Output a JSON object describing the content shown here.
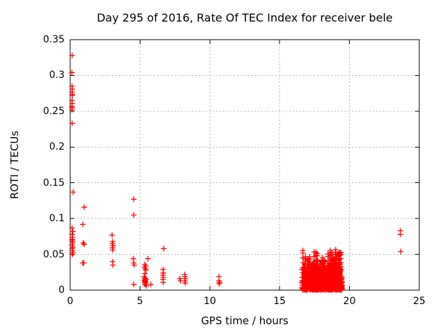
{
  "chart_data": {
    "type": "scatter",
    "title": "Day 295 of 2016, Rate Of TEC Index for receiver bele",
    "xlabel": "GPS time / hours",
    "ylabel": "ROTI / TECUs",
    "xlim": [
      0,
      25
    ],
    "ylim": [
      0,
      0.35
    ],
    "xticks": [
      0,
      5,
      10,
      15,
      20,
      25
    ],
    "yticks": [
      0,
      0.05,
      0.1,
      0.15,
      0.2,
      0.25,
      0.3,
      0.35
    ],
    "grid": "dashed",
    "legend": "none",
    "marker": "plus",
    "marker_color": "#ff0000",
    "grid_color": "#b3b3b3",
    "axis_color": "#000000",
    "series": [
      {
        "name": "ROTI",
        "points": [
          [
            0.14,
            0.328
          ],
          [
            0.12,
            0.304
          ],
          [
            0.13,
            0.285
          ],
          [
            0.15,
            0.281
          ],
          [
            0.13,
            0.277
          ],
          [
            0.14,
            0.274
          ],
          [
            0.15,
            0.272
          ],
          [
            0.13,
            0.265
          ],
          [
            0.14,
            0.261
          ],
          [
            0.12,
            0.257
          ],
          [
            0.14,
            0.255
          ],
          [
            0.13,
            0.252
          ],
          [
            0.14,
            0.233
          ],
          [
            0.21,
            0.137
          ],
          [
            0.13,
            0.087
          ],
          [
            0.19,
            0.082
          ],
          [
            0.14,
            0.078
          ],
          [
            0.17,
            0.074
          ],
          [
            0.13,
            0.071
          ],
          [
            0.15,
            0.07
          ],
          [
            0.14,
            0.068
          ],
          [
            0.17,
            0.066
          ],
          [
            0.13,
            0.063
          ],
          [
            0.18,
            0.06
          ],
          [
            0.14,
            0.058
          ],
          [
            0.16,
            0.055
          ],
          [
            0.13,
            0.052
          ],
          [
            0.21,
            0.052
          ],
          [
            0.15,
            0.05
          ],
          [
            1.0,
            0.116
          ],
          [
            0.9,
            0.092
          ],
          [
            0.93,
            0.066
          ],
          [
            1.0,
            0.064
          ],
          [
            0.89,
            0.038
          ],
          [
            0.97,
            0.038
          ],
          [
            3.0,
            0.077
          ],
          [
            3.05,
            0.068
          ],
          [
            3.02,
            0.065
          ],
          [
            3.07,
            0.062
          ],
          [
            3.03,
            0.059
          ],
          [
            3.05,
            0.056
          ],
          [
            3.04,
            0.04
          ],
          [
            3.06,
            0.035
          ],
          [
            4.55,
            0.127
          ],
          [
            4.55,
            0.105
          ],
          [
            4.52,
            0.044
          ],
          [
            4.55,
            0.038
          ],
          [
            4.58,
            0.035
          ],
          [
            4.55,
            0.008
          ],
          [
            5.57,
            0.044
          ],
          [
            5.35,
            0.036
          ],
          [
            5.4,
            0.034
          ],
          [
            5.33,
            0.032
          ],
          [
            5.38,
            0.03
          ],
          [
            5.42,
            0.028
          ],
          [
            5.36,
            0.023
          ],
          [
            5.3,
            0.019
          ],
          [
            5.34,
            0.017
          ],
          [
            5.38,
            0.016
          ],
          [
            5.42,
            0.015
          ],
          [
            5.32,
            0.014
          ],
          [
            5.36,
            0.013
          ],
          [
            5.4,
            0.012
          ],
          [
            5.34,
            0.011
          ],
          [
            5.38,
            0.01
          ],
          [
            5.35,
            0.008
          ],
          [
            5.45,
            0.006
          ],
          [
            5.77,
            0.008
          ],
          [
            6.7,
            0.058
          ],
          [
            6.65,
            0.029
          ],
          [
            6.67,
            0.024
          ],
          [
            6.64,
            0.021
          ],
          [
            6.66,
            0.018
          ],
          [
            6.65,
            0.015
          ],
          [
            6.66,
            0.011
          ],
          [
            7.85,
            0.016
          ],
          [
            7.9,
            0.013
          ],
          [
            8.2,
            0.022
          ],
          [
            8.22,
            0.019
          ],
          [
            8.25,
            0.016
          ],
          [
            8.2,
            0.013
          ],
          [
            8.24,
            0.01
          ],
          [
            10.65,
            0.019
          ],
          [
            10.65,
            0.013
          ],
          [
            10.7,
            0.011
          ],
          [
            10.66,
            0.009
          ],
          [
            23.65,
            0.083
          ],
          [
            23.65,
            0.078
          ],
          [
            23.67,
            0.054
          ]
        ],
        "dense_cluster": {
          "description": "dense blob of ROTI points between 16.6 and 19.5 hours, values mostly 0-0.045 with spikes to ~0.057",
          "seed": 20161295,
          "x_range": [
            16.6,
            19.48
          ],
          "body_count": 650,
          "y_min": 0.0005,
          "y_body_max": 0.033,
          "skew": 2.0,
          "spike_count": 58,
          "spike_peak_range": [
            0.027,
            0.057
          ],
          "spike_stack_min": 4,
          "spike_stack_max": 9
        }
      }
    ]
  }
}
